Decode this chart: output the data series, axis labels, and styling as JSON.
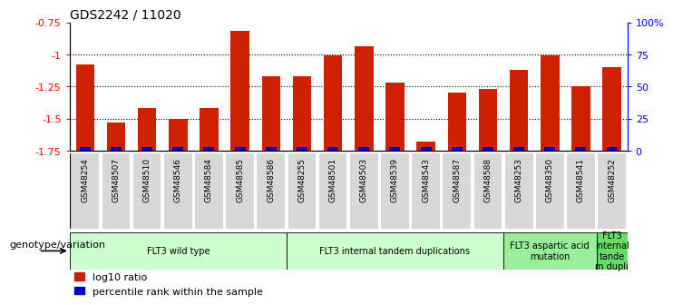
{
  "title": "GDS2242 / 11020",
  "samples": [
    "GSM48254",
    "GSM48507",
    "GSM48510",
    "GSM48546",
    "GSM48584",
    "GSM48585",
    "GSM48586",
    "GSM48255",
    "GSM48501",
    "GSM48503",
    "GSM48539",
    "GSM48543",
    "GSM48587",
    "GSM48588",
    "GSM48253",
    "GSM48350",
    "GSM48541",
    "GSM48252"
  ],
  "log10_ratio": [
    -1.08,
    -1.53,
    -1.42,
    -1.5,
    -1.42,
    -0.82,
    -1.17,
    -1.17,
    -1.01,
    -0.94,
    -1.22,
    -1.68,
    -1.3,
    -1.27,
    -1.12,
    -1.01,
    -1.25,
    -1.1
  ],
  "percentile_rank": [
    3,
    3,
    3,
    3,
    3,
    3,
    3,
    3,
    3,
    3,
    3,
    3,
    3,
    3,
    3,
    3,
    3,
    3
  ],
  "groups": [
    {
      "label": "FLT3 wild type",
      "start": 0,
      "end": 6,
      "color": "#ccffcc"
    },
    {
      "label": "FLT3 internal tandem duplications",
      "start": 7,
      "end": 13,
      "color": "#ccffcc"
    },
    {
      "label": "FLT3 aspartic acid\nmutation",
      "start": 14,
      "end": 16,
      "color": "#99ee99"
    },
    {
      "label": "FLT3\ninternal\ntande\nm dupli",
      "start": 17,
      "end": 17,
      "color": "#66dd66"
    }
  ],
  "ylim_left": [
    -1.75,
    -0.75
  ],
  "ylim_right": [
    0,
    100
  ],
  "yticks_left": [
    -1.75,
    -1.5,
    -1.25,
    -1.0,
    -0.75
  ],
  "ytick_labels_left": [
    "-1.75",
    "-1.5",
    "-1.25",
    "-1",
    "-0.75"
  ],
  "yticks_right": [
    0,
    25,
    50,
    75,
    100
  ],
  "ytick_labels_right": [
    "0",
    "25",
    "50",
    "75",
    "100%"
  ],
  "bar_color_red": "#cc2200",
  "bar_color_blue": "#0000cc",
  "legend_red": "log10 ratio",
  "legend_blue": "percentile rank within the sample",
  "genotype_label": "genotype/variation",
  "dotted_gridlines": [
    -1.0,
    -1.25,
    -1.5
  ]
}
